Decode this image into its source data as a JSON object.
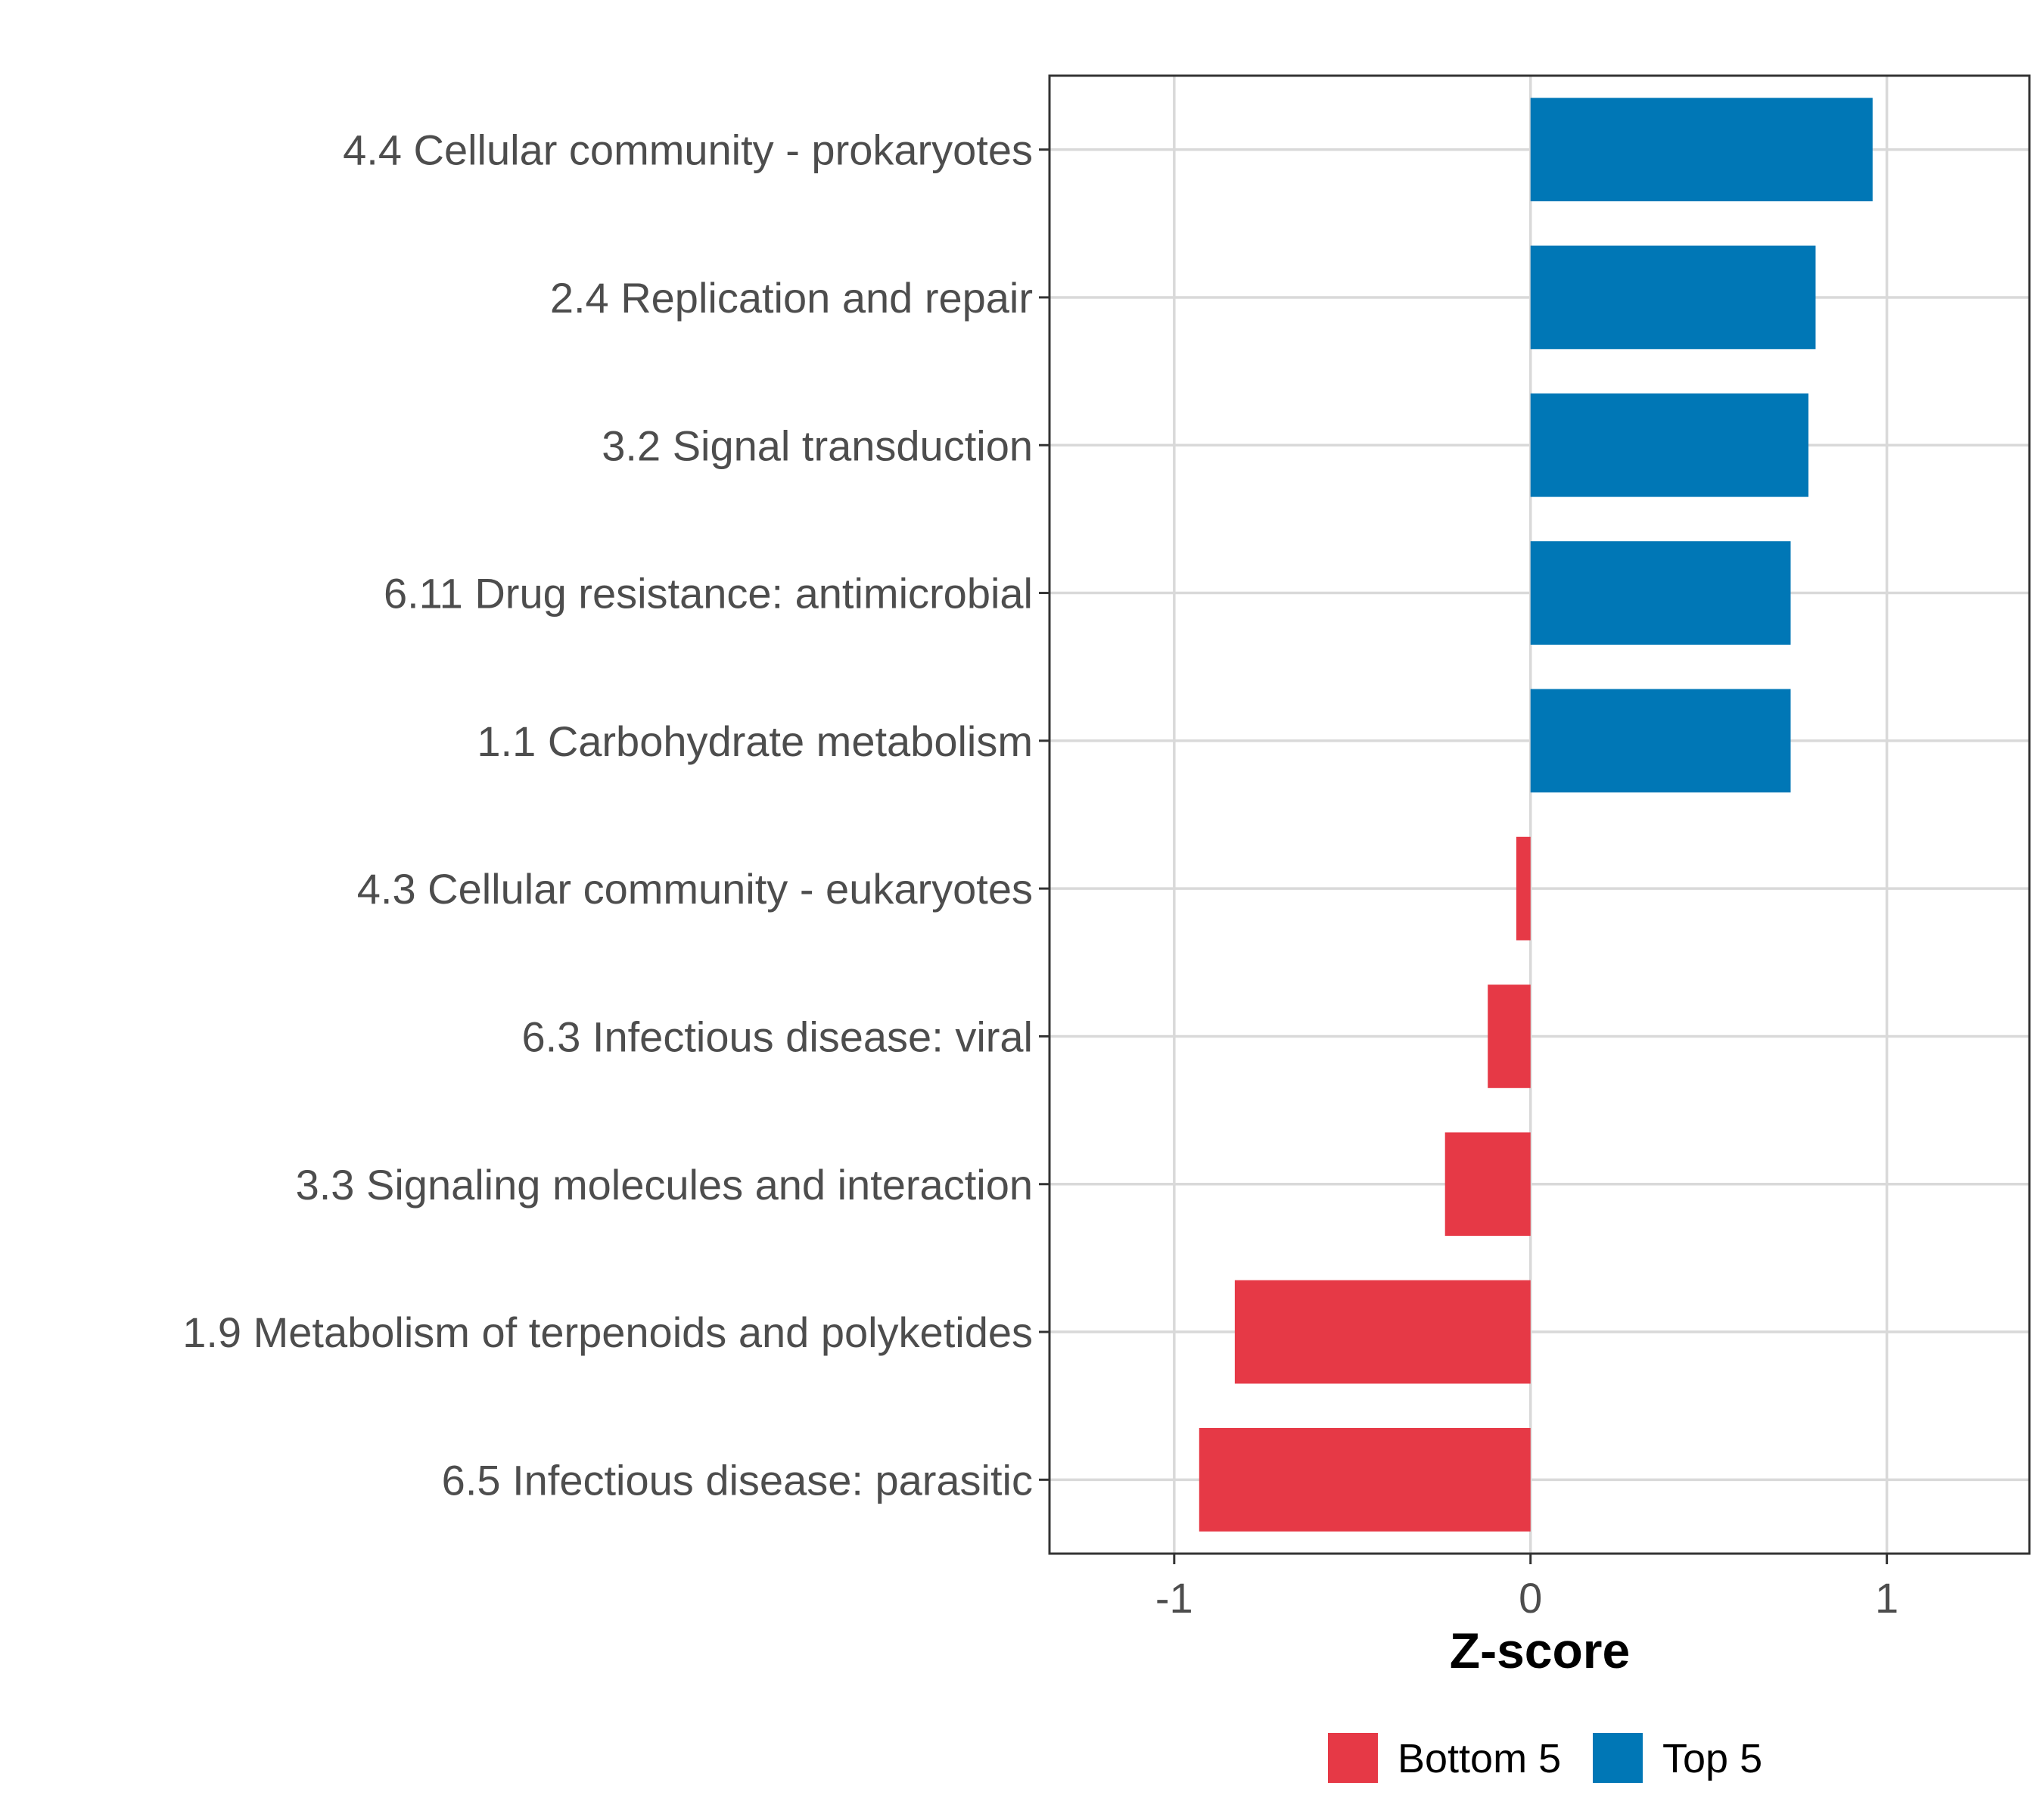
{
  "chart_data": {
    "type": "bar",
    "orientation": "horizontal",
    "xlabel": "Z-score",
    "ylabel": "",
    "xlim": [
      -1.35,
      1.4
    ],
    "xticks": [
      -1,
      0,
      1
    ],
    "xtick_labels": [
      "-1",
      "0",
      "1"
    ],
    "grid": true,
    "legend_position": "bottom",
    "categories": [
      "4.4 Cellular community - prokaryotes",
      "2.4 Replication and repair",
      "3.2 Signal transduction",
      "6.11 Drug resistance: antimicrobial",
      "1.1 Carbohydrate metabolism",
      "4.3 Cellular community - eukaryotes",
      "6.3 Infectious disease: viral",
      "3.3 Signaling molecules and interaction",
      "1.9 Metabolism of terpenoids and polyketides",
      "6.5 Infectious disease: parasitic"
    ],
    "values": [
      0.96,
      0.8,
      0.78,
      0.73,
      0.73,
      -0.04,
      -0.12,
      -0.24,
      -0.83,
      -0.93
    ],
    "groups": [
      "Top 5",
      "Top 5",
      "Top 5",
      "Top 5",
      "Top 5",
      "Bottom 5",
      "Bottom 5",
      "Bottom 5",
      "Bottom 5",
      "Bottom 5"
    ],
    "legend": [
      {
        "name": "Bottom 5",
        "color": "#e63946"
      },
      {
        "name": "Top 5",
        "color": "#0077b6"
      }
    ]
  }
}
